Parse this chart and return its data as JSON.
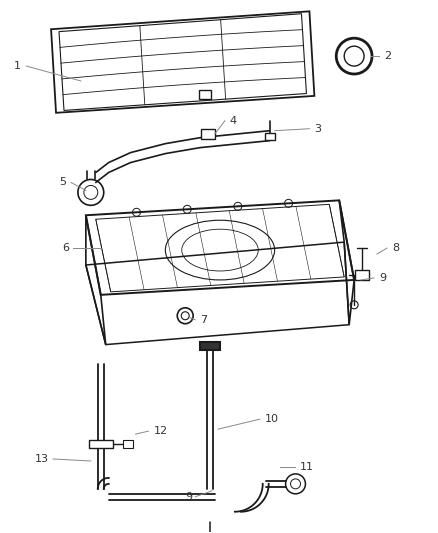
{
  "background_color": "#ffffff",
  "line_color": "#1a1a1a",
  "label_color": "#333333",
  "callout_line_color": "#888888",
  "fig_width": 4.38,
  "fig_height": 5.33,
  "dpi": 100
}
